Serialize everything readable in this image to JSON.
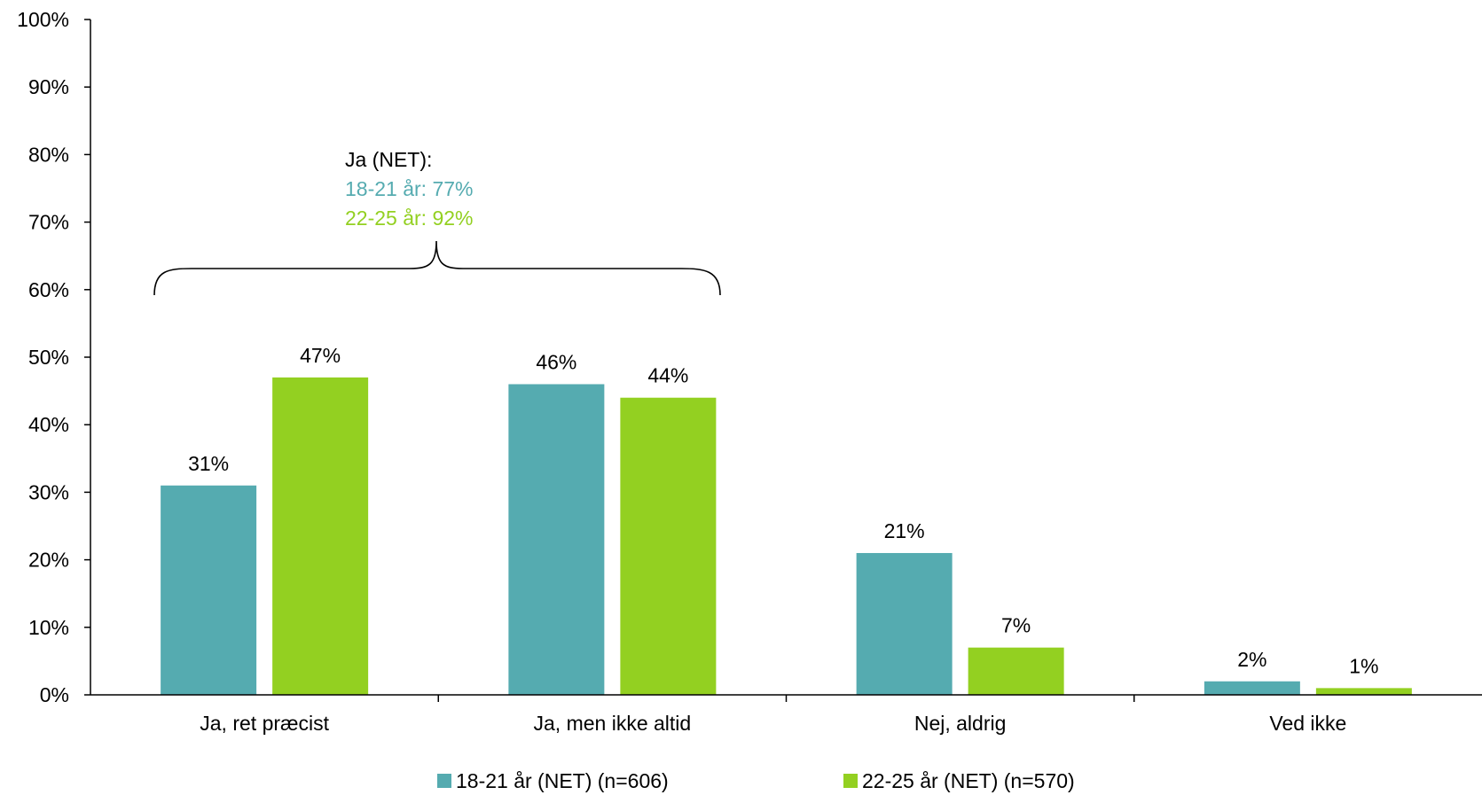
{
  "chart_data": {
    "type": "bar",
    "categories": [
      "Ja, ret præcist",
      "Ja, men ikke altid",
      "Nej, aldrig",
      "Ved ikke"
    ],
    "series": [
      {
        "name": "18-21 år (NET) (n=606)",
        "values": [
          31,
          46,
          21,
          2
        ],
        "labels": [
          "31%",
          "46%",
          "21%",
          "2%"
        ],
        "color": "#55ABB0"
      },
      {
        "name": "22-25 år (NET) (n=570)",
        "values": [
          47,
          44,
          7,
          1
        ],
        "labels": [
          "47%",
          "44%",
          "7%",
          "1%"
        ],
        "color": "#93D021"
      }
    ],
    "ylim": [
      0,
      100
    ],
    "yticks": [
      "0%",
      "10%",
      "20%",
      "30%",
      "40%",
      "50%",
      "60%",
      "70%",
      "80%",
      "90%",
      "100%"
    ],
    "grid": false,
    "legend_position": "bottom",
    "annotation": {
      "title": "Ja (NET):",
      "lines": [
        {
          "text": "18-21 år: 77%",
          "color": "#55ABB0"
        },
        {
          "text": "22-25 år: 92%",
          "color": "#93D021"
        }
      ]
    }
  }
}
